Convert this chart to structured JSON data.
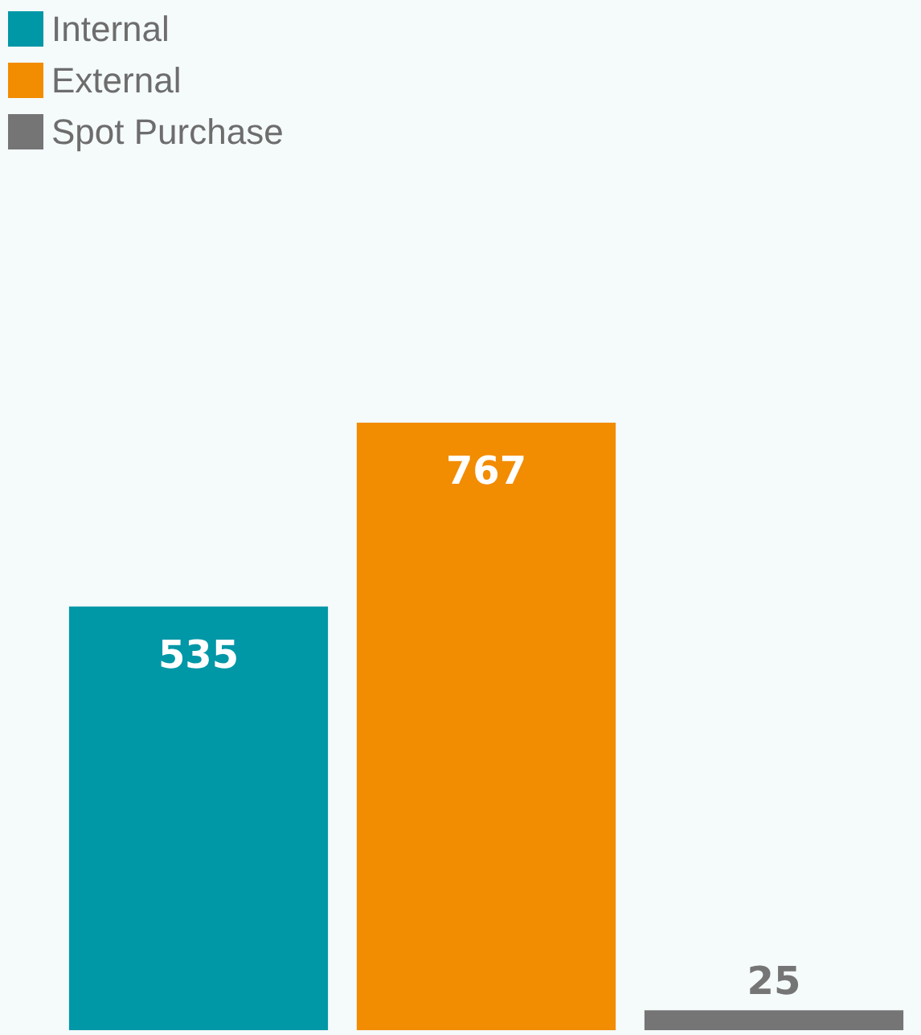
{
  "chart_data": {
    "type": "bar",
    "categories": [
      null,
      null,
      null
    ],
    "series": [
      {
        "name": "Internal",
        "color": "#0097a7",
        "values": [
          535,
          null,
          null
        ]
      },
      {
        "name": "External",
        "color": "#f28c00",
        "values": [
          null,
          767,
          null
        ]
      },
      {
        "name": "Spot Purchase",
        "color": "#757575",
        "values": [
          null,
          null,
          25
        ]
      }
    ],
    "data_labels": true,
    "stacked": true,
    "legend": "top left"
  }
}
